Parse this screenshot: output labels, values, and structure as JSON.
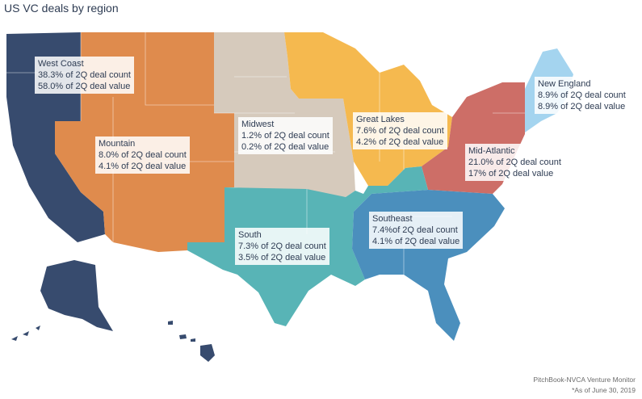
{
  "title": "US VC deals by region",
  "colors": {
    "west_coast": "#374b6e",
    "mountain": "#df8b4d",
    "midwest": "#d6cabc",
    "great_lakes": "#f5b94f",
    "south": "#58b4b6",
    "southeast": "#4b8fbd",
    "mid_atlantic": "#cd6e67",
    "new_england": "#a4d4ef",
    "text": "#2e3c53"
  },
  "regions": {
    "west_coast": {
      "name": "West Coast",
      "count": "38.3% of 2Q deal count",
      "value": "58.0% of 2Q deal value"
    },
    "mountain": {
      "name": "Mountain",
      "count": "8.0% of 2Q deal count",
      "value": "4.1% of 2Q deal value"
    },
    "midwest": {
      "name": "Midwest",
      "count": "1.2% of 2Q deal count",
      "value": "0.2% of 2Q deal value"
    },
    "great_lakes": {
      "name": "Great Lakes",
      "count": "7.6% of 2Q deal count",
      "value": "4.2% of 2Q deal value"
    },
    "new_england": {
      "name": "New England",
      "count": "8.9% of 2Q deal count",
      "value": "8.9% of 2Q deal value"
    },
    "mid_atlantic": {
      "name": "Mid-Atlantic",
      "count": "21.0% of 2Q deal count",
      "value": "17% of 2Q deal value"
    },
    "south": {
      "name": "South",
      "count": "7.3% of 2Q deal count",
      "value": "3.5% of 2Q deal value"
    },
    "southeast": {
      "name": "Southeast",
      "count": "7.4%of 2Q deal count",
      "value": "4.1% of 2Q deal value"
    }
  },
  "footer": {
    "source": "PitchBook-NVCA Venture Monitor",
    "note": "*As of June 30, 2019"
  }
}
